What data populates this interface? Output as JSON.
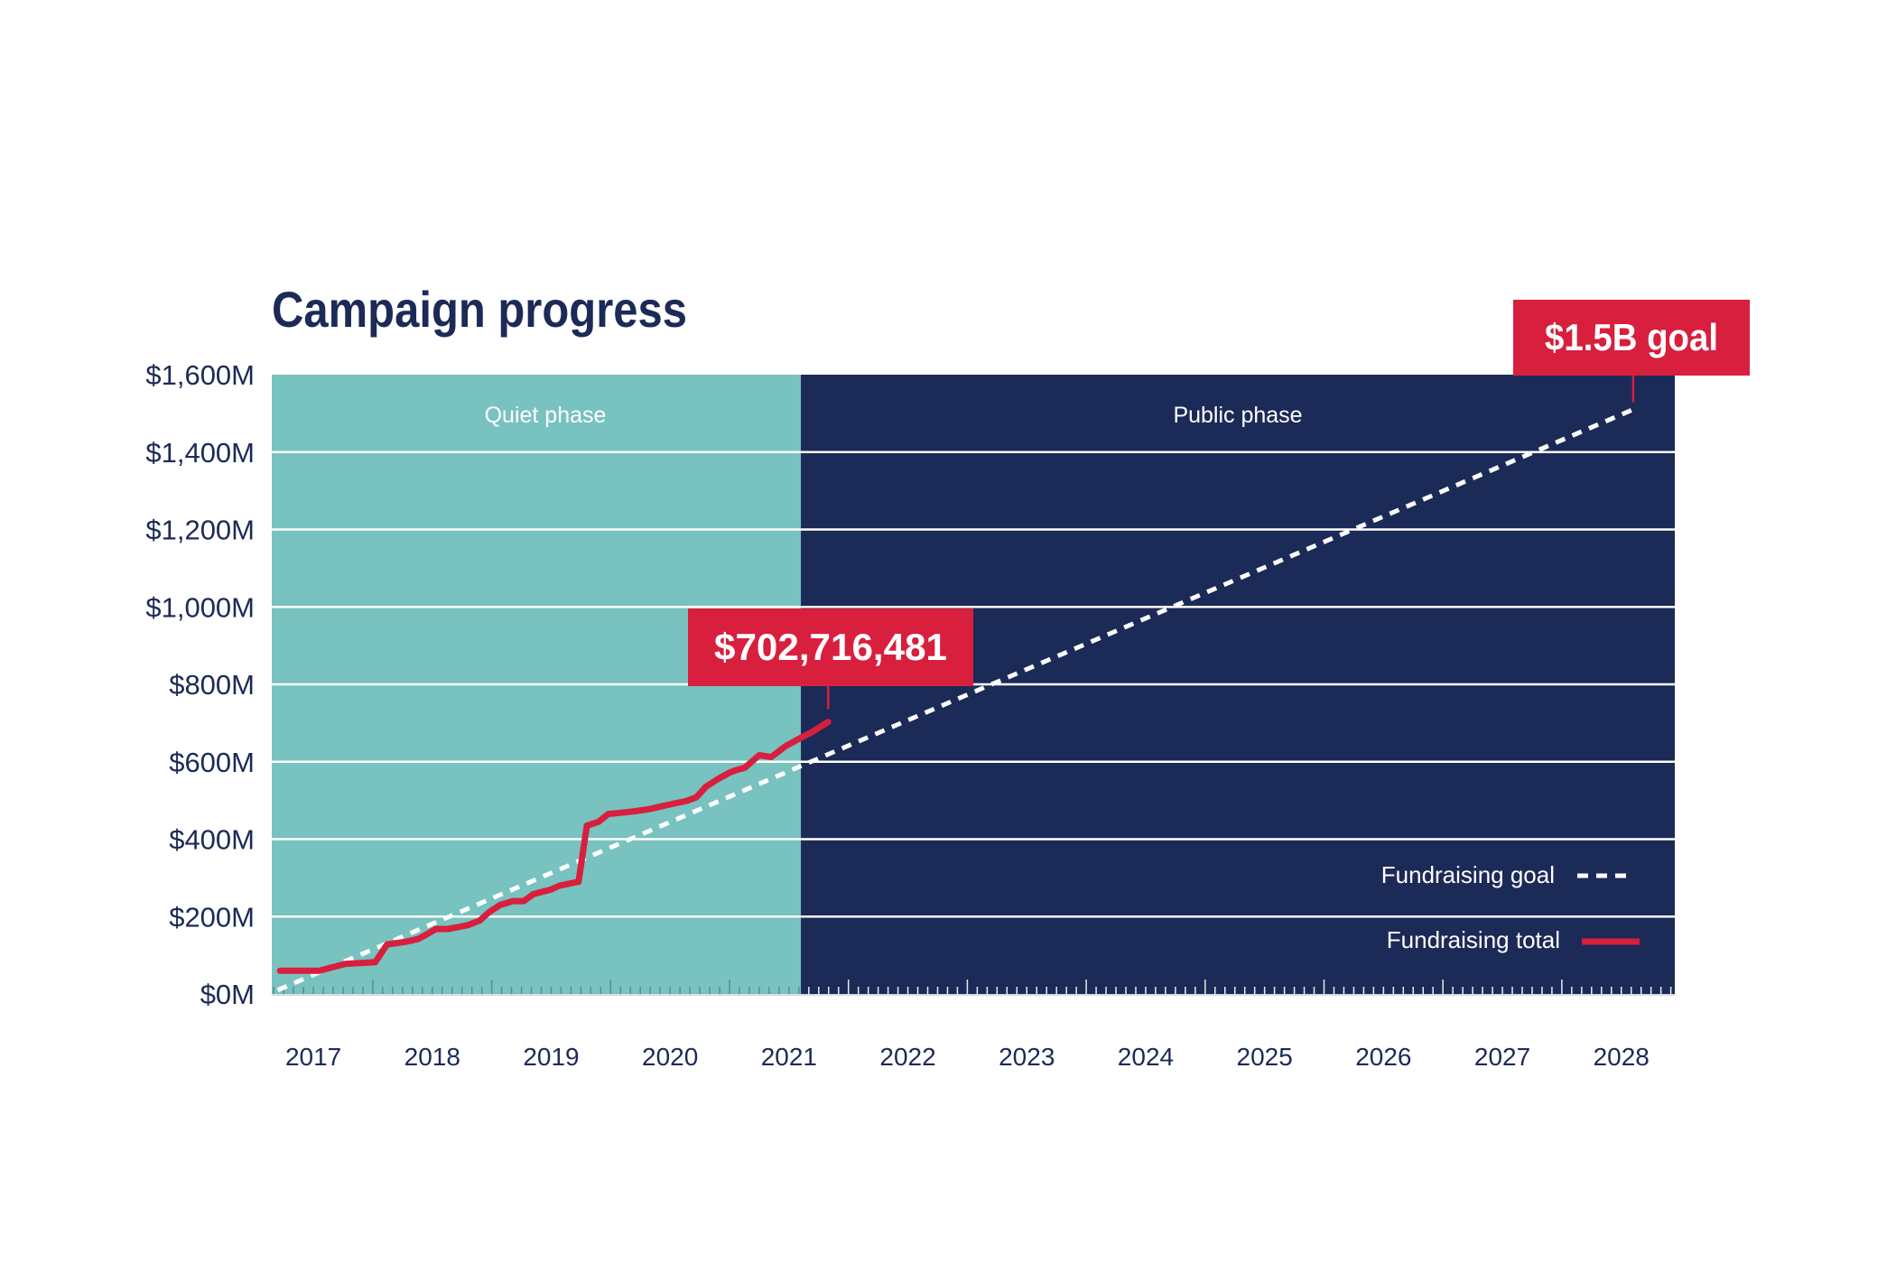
{
  "colors": {
    "navy": "#1c2a57",
    "teal": "#78c2c0",
    "red": "#d81f3e",
    "white": "#ffffff"
  },
  "chart_data": {
    "type": "line",
    "title": "Campaign progress",
    "xlabel": "",
    "ylabel": "",
    "xlim": [
      2016.65,
      2028.45
    ],
    "ylim": [
      0,
      1600
    ],
    "y_unit": "millions USD",
    "yticks": [
      {
        "value": 0,
        "label": "$0M"
      },
      {
        "value": 200,
        "label": "$200M"
      },
      {
        "value": 400,
        "label": "$400M"
      },
      {
        "value": 600,
        "label": "$600M"
      },
      {
        "value": 800,
        "label": "$800M"
      },
      {
        "value": 1000,
        "label": "$1,000M"
      },
      {
        "value": 1200,
        "label": "$1,200M"
      },
      {
        "value": 1400,
        "label": "$1,400M"
      },
      {
        "value": 1600,
        "label": "$1,600M"
      }
    ],
    "xticks": [
      "2017",
      "2018",
      "2019",
      "2020",
      "2021",
      "2022",
      "2023",
      "2024",
      "2025",
      "2026",
      "2027",
      "2028"
    ],
    "grid": true,
    "phases": [
      {
        "label": "Quiet phase",
        "start": 2016.65,
        "end": 2021.1
      },
      {
        "label": "Public phase",
        "start": 2021.1,
        "end": 2028.45
      }
    ],
    "series": [
      {
        "name": "Fundraising goal",
        "style": "dashed",
        "x": [
          2016.7,
          2028.1
        ],
        "y": [
          10,
          1510
        ]
      },
      {
        "name": "Fundraising total",
        "style": "solid",
        "x": [
          2016.72,
          2016.9,
          2017.05,
          2017.17,
          2017.27,
          2017.52,
          2017.62,
          2017.78,
          2017.88,
          2017.93,
          2018.03,
          2018.13,
          2018.2,
          2018.3,
          2018.4,
          2018.48,
          2018.57,
          2018.68,
          2018.77,
          2018.85,
          2019.0,
          2019.07,
          2019.15,
          2019.23,
          2019.3,
          2019.4,
          2019.48,
          2019.58,
          2019.7,
          2019.83,
          2019.93,
          2020.03,
          2020.13,
          2020.22,
          2020.3,
          2020.4,
          2020.5,
          2020.55,
          2020.63,
          2020.75,
          2020.85,
          2020.97,
          2021.1,
          2021.2,
          2021.33
        ],
        "y": [
          60,
          60,
          60,
          70,
          78,
          82,
          128,
          135,
          142,
          150,
          168,
          168,
          172,
          178,
          190,
          212,
          230,
          240,
          240,
          258,
          270,
          280,
          285,
          290,
          435,
          445,
          465,
          468,
          472,
          478,
          485,
          492,
          498,
          508,
          535,
          555,
          572,
          578,
          585,
          617,
          612,
          640,
          662,
          678,
          703
        ]
      }
    ],
    "legend": {
      "placement": "bottom-right",
      "entries": [
        "Fundraising goal",
        "Fundraising total"
      ]
    },
    "annotations": [
      {
        "text": "$702,716,481",
        "x": 2021.33,
        "y": 703
      },
      {
        "text": "$1.5B goal",
        "x": 2028.1,
        "y": 1510
      }
    ]
  }
}
